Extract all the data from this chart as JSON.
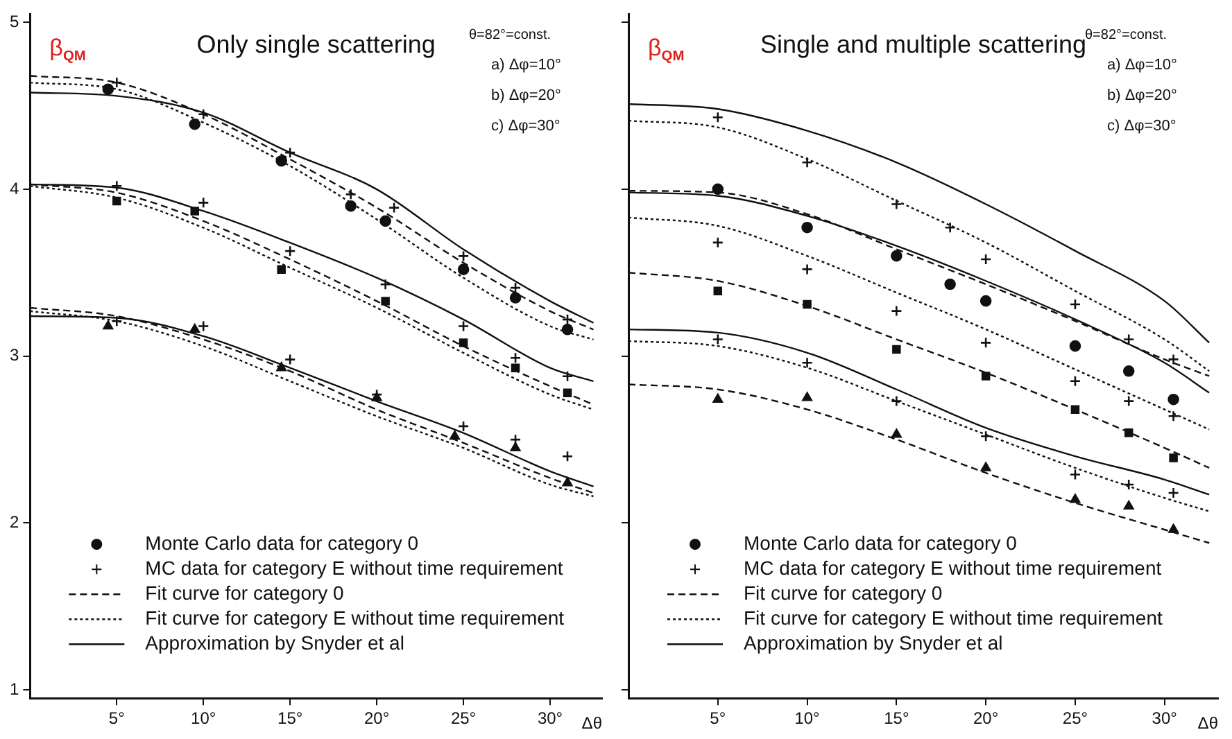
{
  "chart_data": [
    {
      "type": "line",
      "title": "Only single scattering",
      "xlabel": "Δθ",
      "ylabel": "β$_{QM}$",
      "xlim": [
        0,
        33
      ],
      "ylim": [
        0.95,
        5.05
      ],
      "xticks": [
        {
          "value": 5,
          "label": "5°"
        },
        {
          "value": 10,
          "label": "10°"
        },
        {
          "value": 15,
          "label": "15°"
        },
        {
          "value": 20,
          "label": "20°"
        },
        {
          "value": 25,
          "label": "25°"
        },
        {
          "value": 30,
          "label": "30°"
        }
      ],
      "yticks": [
        1,
        2,
        3,
        4,
        5
      ],
      "grid": false,
      "legend": "bottom left",
      "annotations": [
        "θ=82°=const.",
        "a) Δφ=10°",
        "b) Δφ=20°",
        "c) Δφ=30°"
      ],
      "series": [
        {
          "name": "Monte Carlo data for category 0",
          "type": "scatter",
          "marker": "circle",
          "color": "#111111",
          "x": [
            4.5,
            9.5,
            14.5,
            18.5,
            20.5,
            25,
            28,
            31
          ],
          "values": [
            4.6,
            4.39,
            4.17,
            3.9,
            3.81,
            3.52,
            3.35,
            3.16
          ]
        },
        {
          "name": "MC data for category E without time requirement",
          "type": "scatter",
          "marker": "cross",
          "color": "#111111",
          "x": [
            5,
            10,
            15,
            18.5,
            21,
            25,
            28,
            31
          ],
          "values": [
            4.64,
            4.45,
            4.22,
            3.97,
            3.89,
            3.6,
            3.41,
            3.22
          ]
        },
        {
          "name": "Fit curve for category 0",
          "type": "line",
          "line_style": "dashed",
          "color": "#111111",
          "x": [
            0,
            5,
            10,
            15,
            20,
            25,
            30,
            32.5
          ],
          "values": [
            4.68,
            4.64,
            4.45,
            4.18,
            3.89,
            3.56,
            3.27,
            3.16
          ]
        },
        {
          "name": "Fit curve for category E without time requirement",
          "type": "line",
          "line_style": "dotted",
          "color": "#111111",
          "x": [
            0,
            5,
            10,
            15,
            20,
            25,
            30,
            32.5
          ],
          "values": [
            4.64,
            4.6,
            4.4,
            4.14,
            3.82,
            3.47,
            3.18,
            3.1
          ]
        },
        {
          "name": "Approximation by Snyder et al",
          "type": "line",
          "line_style": "solid",
          "color": "#111111",
          "x": [
            0,
            5,
            10,
            15,
            20,
            25,
            30,
            32.5
          ],
          "values": [
            4.58,
            4.56,
            4.46,
            4.22,
            4.0,
            3.64,
            3.33,
            3.2
          ]
        },
        {
          "type": "scatter",
          "marker": "square",
          "color": "#111111",
          "x": [
            5,
            9.5,
            14.5,
            20.5,
            25,
            28,
            31
          ],
          "values": [
            3.93,
            3.87,
            3.52,
            3.33,
            3.08,
            2.93,
            2.78
          ]
        },
        {
          "type": "scatter",
          "marker": "cross",
          "color": "#111111",
          "x": [
            5,
            10,
            15,
            20.5,
            25,
            28,
            31
          ],
          "values": [
            4.02,
            3.92,
            3.63,
            3.43,
            3.18,
            2.99,
            2.88
          ]
        },
        {
          "type": "line",
          "line_style": "dashed",
          "color": "#111111",
          "x": [
            0,
            5,
            10,
            15,
            20,
            25,
            30,
            32.5
          ],
          "values": [
            4.03,
            3.98,
            3.81,
            3.58,
            3.33,
            3.06,
            2.82,
            2.71
          ]
        },
        {
          "type": "line",
          "line_style": "dotted",
          "color": "#111111",
          "x": [
            0,
            5,
            10,
            15,
            20,
            25,
            30,
            32.5
          ],
          "values": [
            4.02,
            3.95,
            3.77,
            3.53,
            3.29,
            3.02,
            2.77,
            2.68
          ]
        },
        {
          "type": "line",
          "line_style": "solid",
          "color": "#111111",
          "x": [
            0,
            5,
            10,
            15,
            20,
            25,
            30,
            32.5
          ],
          "values": [
            4.03,
            4.01,
            3.87,
            3.68,
            3.47,
            3.22,
            2.93,
            2.85
          ]
        },
        {
          "type": "scatter",
          "marker": "triangle",
          "color": "#111111",
          "x": [
            4.5,
            9.5,
            14.5,
            20,
            24.5,
            28,
            31
          ],
          "values": [
            3.18,
            3.16,
            2.93,
            2.75,
            2.52,
            2.45,
            2.24
          ]
        },
        {
          "type": "scatter",
          "marker": "cross",
          "color": "#111111",
          "x": [
            5,
            10,
            15,
            20,
            25,
            28,
            31
          ],
          "values": [
            3.21,
            3.18,
            2.98,
            2.77,
            2.58,
            2.5,
            2.4
          ]
        },
        {
          "type": "line",
          "line_style": "dashed",
          "color": "#111111",
          "x": [
            0,
            5,
            10,
            15,
            20,
            25,
            30,
            32.5
          ],
          "values": [
            3.29,
            3.24,
            3.1,
            2.91,
            2.68,
            2.48,
            2.27,
            2.18
          ]
        },
        {
          "type": "line",
          "line_style": "dotted",
          "color": "#111111",
          "x": [
            0,
            5,
            10,
            15,
            20,
            25,
            30,
            32.5
          ],
          "values": [
            3.27,
            3.21,
            3.06,
            2.85,
            2.64,
            2.45,
            2.23,
            2.16
          ]
        },
        {
          "type": "line",
          "line_style": "solid",
          "color": "#111111",
          "x": [
            0,
            5,
            10,
            15,
            20,
            25,
            30,
            32.5
          ],
          "values": [
            3.24,
            3.23,
            3.12,
            2.93,
            2.73,
            2.54,
            2.31,
            2.22
          ]
        }
      ]
    },
    {
      "type": "line",
      "title": "Single and multiple scattering",
      "xlabel": "Δθ",
      "ylabel": "β$_{QM}$",
      "xlim": [
        0,
        33
      ],
      "ylim": [
        0.95,
        5.05
      ],
      "xticks": [
        {
          "value": 5,
          "label": "5°"
        },
        {
          "value": 10,
          "label": "10°"
        },
        {
          "value": 15,
          "label": "15°"
        },
        {
          "value": 20,
          "label": "20°"
        },
        {
          "value": 25,
          "label": "25°"
        },
        {
          "value": 30,
          "label": "30°"
        }
      ],
      "yticks": [
        1,
        2,
        3,
        4,
        5
      ],
      "tick_labels": "x",
      "grid": false,
      "legend": "bottom left",
      "annotations": [
        "θ=82°=const.",
        "a) Δφ=10°",
        "b) Δφ=20°",
        "c) Δφ=30°"
      ],
      "series": [
        {
          "name": "Monte Carlo data for category 0",
          "type": "scatter",
          "marker": "circle",
          "color": "#111111",
          "x": [
            5,
            10,
            15,
            18,
            20,
            25,
            28,
            30.5
          ],
          "values": [
            4.0,
            3.77,
            3.6,
            3.43,
            3.33,
            3.06,
            2.91,
            2.74
          ]
        },
        {
          "name": "MC data for category E without time requirement",
          "type": "scatter",
          "marker": "cross",
          "color": "#111111",
          "x": [
            5,
            10,
            15,
            18,
            20,
            25,
            28,
            30.5
          ],
          "values": [
            4.43,
            4.16,
            3.91,
            3.77,
            3.58,
            3.31,
            3.1,
            2.98
          ]
        },
        {
          "name": "Fit curve for category 0",
          "type": "line",
          "line_style": "dashed",
          "color": "#111111",
          "x": [
            0,
            5,
            10,
            15,
            20,
            25,
            30,
            32.5
          ],
          "values": [
            3.99,
            3.98,
            3.85,
            3.64,
            3.43,
            3.21,
            2.98,
            2.88
          ]
        },
        {
          "name": "Fit curve for category E without time requirement",
          "type": "line",
          "line_style": "dotted",
          "color": "#111111",
          "x": [
            0,
            5,
            10,
            15,
            20,
            25,
            30,
            32.5
          ],
          "values": [
            4.41,
            4.37,
            4.18,
            3.93,
            3.68,
            3.39,
            3.1,
            2.91
          ]
        },
        {
          "name": "Approximation by Snyder et al",
          "type": "line",
          "line_style": "solid",
          "color": "#111111",
          "x": [
            0,
            5,
            10,
            15,
            20,
            25,
            30,
            32.5
          ],
          "values": [
            4.51,
            4.48,
            4.35,
            4.16,
            3.91,
            3.63,
            3.33,
            3.08
          ]
        },
        {
          "type": "scatter",
          "marker": "square",
          "color": "#111111",
          "x": [
            5,
            10,
            15,
            20,
            25,
            28,
            30.5
          ],
          "values": [
            3.39,
            3.31,
            3.04,
            2.88,
            2.68,
            2.54,
            2.39
          ]
        },
        {
          "type": "scatter",
          "marker": "cross",
          "color": "#111111",
          "x": [
            5,
            10,
            15,
            20,
            25,
            28,
            30.5
          ],
          "values": [
            3.68,
            3.52,
            3.27,
            3.08,
            2.85,
            2.73,
            2.64
          ]
        },
        {
          "type": "line",
          "line_style": "dashed",
          "color": "#111111",
          "x": [
            0,
            5,
            10,
            15,
            20,
            25,
            30,
            32.5
          ],
          "values": [
            3.5,
            3.45,
            3.3,
            3.1,
            2.9,
            2.68,
            2.45,
            2.33
          ]
        },
        {
          "type": "line",
          "line_style": "dotted",
          "color": "#111111",
          "x": [
            0,
            5,
            10,
            15,
            20,
            25,
            30,
            32.5
          ],
          "values": [
            3.83,
            3.78,
            3.6,
            3.38,
            3.16,
            2.92,
            2.68,
            2.56
          ]
        },
        {
          "type": "line",
          "line_style": "solid",
          "color": "#111111",
          "x": [
            0,
            5,
            10,
            15,
            20,
            25,
            30,
            32.5
          ],
          "values": [
            3.98,
            3.96,
            3.84,
            3.66,
            3.45,
            3.22,
            2.96,
            2.78
          ]
        },
        {
          "type": "scatter",
          "marker": "triangle",
          "color": "#111111",
          "x": [
            5,
            10,
            15,
            20,
            25,
            28,
            30.5
          ],
          "values": [
            2.74,
            2.75,
            2.53,
            2.33,
            2.14,
            2.1,
            1.96
          ]
        },
        {
          "type": "scatter",
          "marker": "cross",
          "color": "#111111",
          "x": [
            5,
            10,
            15,
            20,
            25,
            28,
            30.5
          ],
          "values": [
            3.1,
            2.96,
            2.73,
            2.52,
            2.29,
            2.23,
            2.18
          ]
        },
        {
          "type": "line",
          "line_style": "dashed",
          "color": "#111111",
          "x": [
            0,
            5,
            10,
            15,
            20,
            25,
            30,
            32.5
          ],
          "values": [
            2.83,
            2.8,
            2.68,
            2.5,
            2.3,
            2.12,
            1.96,
            1.88
          ]
        },
        {
          "type": "line",
          "line_style": "dotted",
          "color": "#111111",
          "x": [
            0,
            5,
            10,
            15,
            20,
            25,
            30,
            32.5
          ],
          "values": [
            3.09,
            3.06,
            2.93,
            2.73,
            2.53,
            2.33,
            2.15,
            2.07
          ]
        },
        {
          "type": "line",
          "line_style": "solid",
          "color": "#111111",
          "x": [
            0,
            5,
            10,
            15,
            20,
            25,
            30,
            32.5
          ],
          "values": [
            3.16,
            3.14,
            3.02,
            2.8,
            2.57,
            2.4,
            2.26,
            2.17
          ]
        }
      ]
    }
  ]
}
